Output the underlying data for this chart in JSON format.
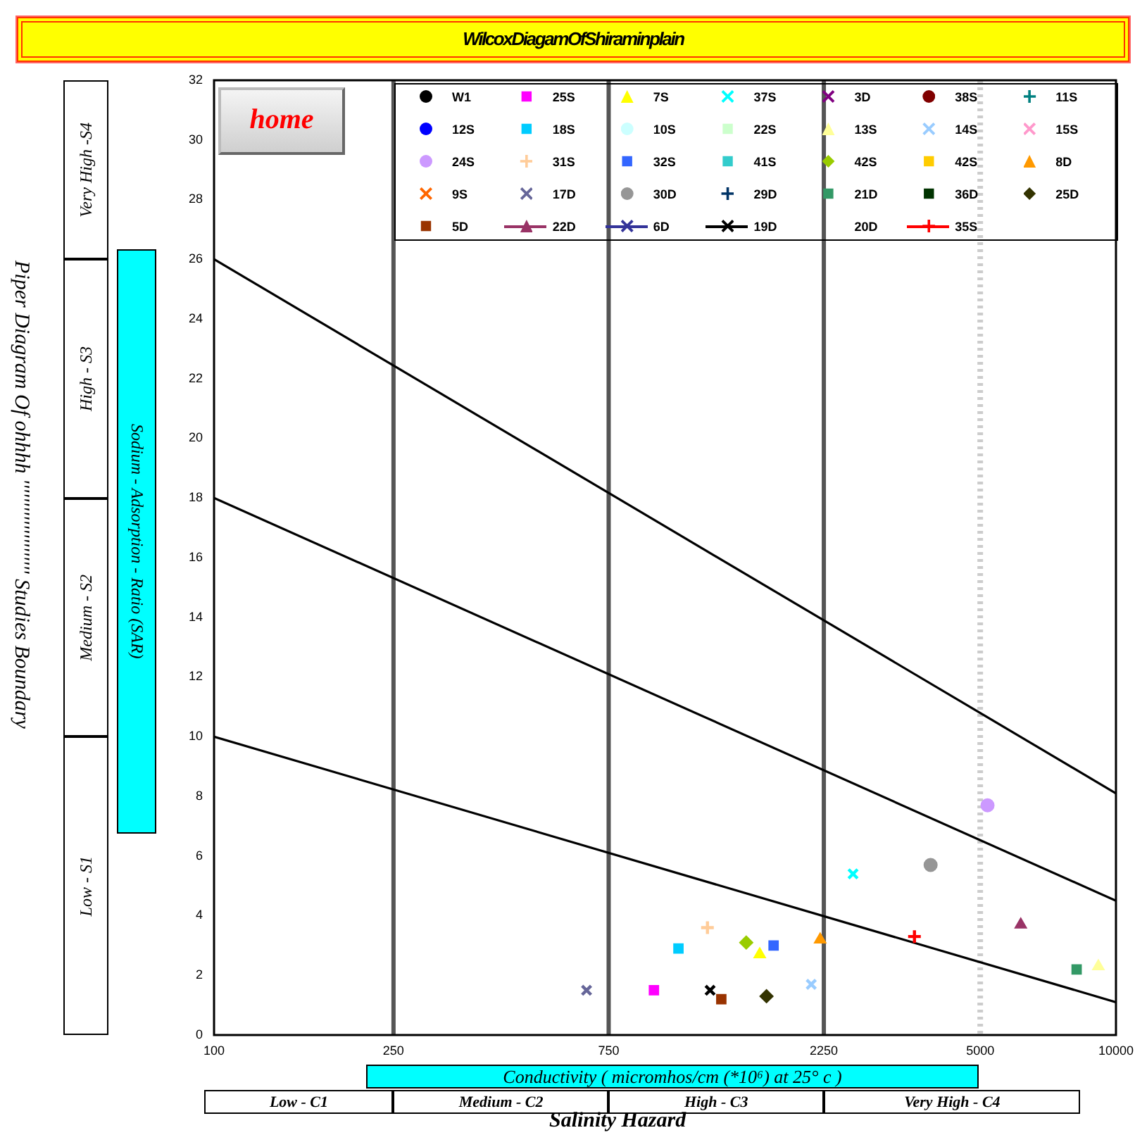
{
  "chart_data": {
    "type": "scatter",
    "title": "WilcoxDiagamOfShiraminplain",
    "xlabel": "Conductivity ( micromhos/cm (*10⁶) at 25° c )",
    "ylabel": "Sodium - Adsorption - Ratio (SAR)",
    "annotations": [
      "Low - S1",
      "Medium - S2",
      "High - S3",
      "Very High -S4",
      "Low - C1",
      "Medium - C2",
      "High - C3",
      "Very High - C4",
      "Salinity  Hazard",
      "Piper Diagram Of ohhhh '''''''''''''''''''''    Studies Boundary",
      "home"
    ],
    "log": "x",
    "xlim": [
      100,
      10000
    ],
    "xticks": [
      100,
      250,
      750,
      2250,
      5000,
      10000
    ],
    "ylim": [
      0,
      32
    ],
    "yticks": [
      0,
      2,
      4,
      6,
      8,
      10,
      12,
      14,
      16,
      18,
      20,
      22,
      24,
      26,
      28,
      30,
      32
    ],
    "grid": false,
    "legend": "top right",
    "series": [
      {
        "name": "W1",
        "color": "#000000",
        "marker": "circle",
        "x": [
          null
        ],
        "values": [
          null
        ]
      },
      {
        "name": "25S",
        "color": "#ff00ff",
        "marker": "square",
        "x": [
          945
        ],
        "values": [
          1.5
        ]
      },
      {
        "name": "7S",
        "color": "#ffff00",
        "marker": "triangle",
        "x": [
          1622
        ],
        "values": [
          2.7
        ]
      },
      {
        "name": "37S",
        "color": "#00ffff",
        "marker": "cross",
        "x": [
          2612
        ],
        "values": [
          5.4
        ]
      },
      {
        "name": "3D",
        "color": "#800080",
        "marker": "cross",
        "x": [
          null
        ],
        "values": [
          null
        ]
      },
      {
        "name": "38S",
        "color": "#800000",
        "marker": "circle",
        "x": [
          null
        ],
        "values": [
          null
        ]
      },
      {
        "name": "11S",
        "color": "#008080",
        "marker": "plus",
        "x": [
          null
        ],
        "values": [
          null
        ]
      },
      {
        "name": "12S",
        "color": "#0000ff",
        "marker": "circle",
        "x": [
          null
        ],
        "values": [
          null
        ]
      },
      {
        "name": "18S",
        "color": "#00ccff",
        "marker": "square",
        "x": [
          1071
        ],
        "values": [
          2.9
        ]
      },
      {
        "name": "10S",
        "color": "#ccffff",
        "marker": "circle",
        "x": [
          null
        ],
        "values": [
          null
        ]
      },
      {
        "name": "22S",
        "color": "#ccffcc",
        "marker": "square",
        "x": [
          null
        ],
        "values": [
          null
        ]
      },
      {
        "name": "13S",
        "color": "#ffff99",
        "marker": "triangle",
        "x": [
          9140
        ],
        "values": [
          2.3
        ]
      },
      {
        "name": "14S",
        "color": "#99ccff",
        "marker": "cross",
        "x": [
          2110
        ],
        "values": [
          1.7
        ]
      },
      {
        "name": "15S",
        "color": "#ff99cc",
        "marker": "cross",
        "x": [
          null
        ],
        "values": [
          null
        ]
      },
      {
        "name": "24S",
        "color": "#cc99ff",
        "marker": "circle",
        "x": [
          5190
        ],
        "values": [
          7.7
        ]
      },
      {
        "name": "31S",
        "color": "#ffcc99",
        "marker": "plus",
        "x": [
          1242
        ],
        "values": [
          3.6
        ]
      },
      {
        "name": "32S",
        "color": "#3366ff",
        "marker": "square",
        "x": [
          1741
        ],
        "values": [
          3.0
        ]
      },
      {
        "name": "41S",
        "color": "#33cccc",
        "marker": "square",
        "x": [
          null
        ],
        "values": [
          null
        ]
      },
      {
        "name": "42S",
        "color": "#99cc00",
        "marker": "diamond",
        "x": [
          1514
        ],
        "values": [
          3.1
        ]
      },
      {
        "name": "42S",
        "color": "#ffcc00",
        "marker": "square",
        "x": [
          null
        ],
        "values": [
          null
        ]
      },
      {
        "name": "8D",
        "color": "#ff9900",
        "marker": "triangle",
        "x": [
          2208
        ],
        "values": [
          3.2
        ]
      },
      {
        "name": "9S",
        "color": "#ff6600",
        "marker": "cross",
        "x": [
          null
        ],
        "values": [
          null
        ]
      },
      {
        "name": "17D",
        "color": "#666699",
        "marker": "cross",
        "x": [
          670
        ],
        "values": [
          1.5
        ]
      },
      {
        "name": "30D",
        "color": "#969696",
        "marker": "circle",
        "x": [
          3881
        ],
        "values": [
          5.7
        ]
      },
      {
        "name": "29D",
        "color": "#003366",
        "marker": "plus",
        "x": [
          null
        ],
        "values": [
          null
        ]
      },
      {
        "name": "21D",
        "color": "#339966",
        "marker": "square",
        "x": [
          8180
        ],
        "values": [
          2.2
        ]
      },
      {
        "name": "36D",
        "color": "#003300",
        "marker": "square",
        "x": [
          null
        ],
        "values": [
          null
        ]
      },
      {
        "name": "25D",
        "color": "#333300",
        "marker": "diamond",
        "x": [
          1679
        ],
        "values": [
          1.3
        ]
      },
      {
        "name": "5D",
        "color": "#993300",
        "marker": "square",
        "x": [
          1333
        ],
        "values": [
          1.2
        ]
      },
      {
        "name": "22D",
        "color": "#993366",
        "marker": "triangle",
        "line_style": "solid",
        "x": [
          6150
        ],
        "values": [
          3.7
        ]
      },
      {
        "name": "6D",
        "color": "#333399",
        "marker": "cross",
        "line_style": "solid",
        "x": [
          null
        ],
        "values": [
          null
        ]
      },
      {
        "name": "19D",
        "color": "#000000",
        "marker": "cross",
        "line_style": "solid",
        "x": [
          1259
        ],
        "values": [
          1.5
        ]
      },
      {
        "name": "20D",
        "color": "#000000",
        "marker": "none",
        "x": [
          null
        ],
        "values": [
          null
        ]
      },
      {
        "name": "35S",
        "color": "#ff0000",
        "marker": "plus",
        "line_style": "solid",
        "x": [
          3574
        ],
        "values": [
          3.3
        ]
      },
      {
        "type": "line",
        "color": "#000000",
        "marker": "none",
        "x": [
          100,
          10000
        ],
        "values": [
          10,
          1.1
        ]
      },
      {
        "type": "line",
        "color": "#000000",
        "marker": "none",
        "x": [
          100,
          10000
        ],
        "values": [
          18,
          4.5
        ]
      },
      {
        "type": "line",
        "color": "#000000",
        "marker": "none",
        "x": [
          100,
          10000
        ],
        "values": [
          26,
          8.1
        ]
      }
    ],
    "ref_lines": [
      {
        "axis": "x",
        "value": 250,
        "color": "#555555",
        "line_style": "solid"
      },
      {
        "axis": "x",
        "value": 750,
        "color": "#555555",
        "line_style": "solid"
      },
      {
        "axis": "x",
        "value": 2250,
        "color": "#555555",
        "line_style": "solid"
      },
      {
        "axis": "x",
        "value": 5000,
        "color": "#cccccc",
        "line_style": "dotted"
      }
    ]
  }
}
